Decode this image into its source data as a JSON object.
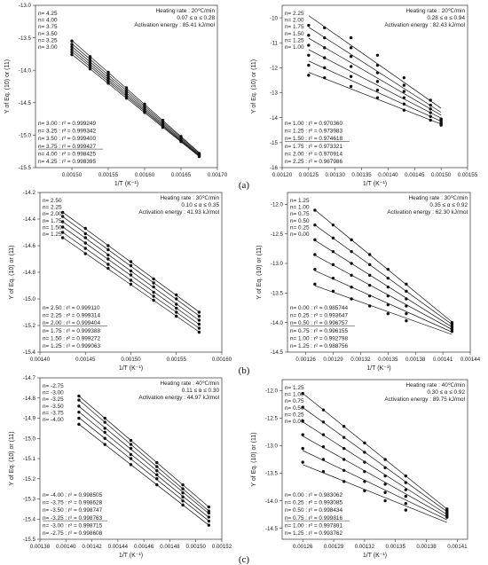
{
  "panel_labels": [
    "(a)",
    "(b)",
    "(c)"
  ],
  "chart_data": [
    {
      "type": "scatter",
      "xlabel": "1/T (K⁻¹)",
      "ylabel": "Y of Eq. (10) or (11)",
      "xlim": [
        0.00145,
        0.0017
      ],
      "ylim": [
        -15.5,
        -13.0
      ],
      "xticks": [
        "0.00150",
        "0.00155",
        "0.00160",
        "0.00165",
        "0.00170"
      ],
      "yticks": [
        "-13.0",
        "-13.5",
        "-14.0",
        "-14.5",
        "-15.0",
        "-15.5"
      ],
      "annotations": [
        "Heating rate : 20℃/min",
        "0.07 ≤ α ≤ 0.28",
        "Activation energy : 85.41 kJ/mol"
      ],
      "n_labels": [
        "n= 4.25",
        "n= 4.00",
        "n= 3.75",
        "n= 3.50",
        "n= 3.25",
        "n= 3.00"
      ],
      "r2_labels": [
        "n= 3.00 : r² = 0.999249",
        "n= 3.25 : r² = 0.999342",
        "n= 3.50 : r² = 0.999400",
        "n= 3.75 : r² = 0.999427",
        "n= 4.00 : r² = 0.998425",
        "n= 4.25 : r² = 0.998395"
      ],
      "r2_underline_index": 3,
      "x_points": [
        0.0015,
        0.001525,
        0.00155,
        0.001575,
        0.0016,
        0.001625,
        0.00165,
        0.001675
      ],
      "series": [
        {
          "name": "n= 4.25",
          "values": [
            -13.55,
            -13.79,
            -14.03,
            -14.27,
            -14.52,
            -14.77,
            -15.02,
            -15.28
          ]
        },
        {
          "name": "n= 4.00",
          "values": [
            -13.6,
            -13.83,
            -14.07,
            -14.31,
            -14.55,
            -14.79,
            -15.04,
            -15.29
          ]
        },
        {
          "name": "n= 3.75",
          "values": [
            -13.64,
            -13.87,
            -14.11,
            -14.34,
            -14.58,
            -14.82,
            -15.06,
            -15.3
          ]
        },
        {
          "name": "n= 3.50",
          "values": [
            -13.68,
            -13.91,
            -14.14,
            -14.37,
            -14.61,
            -14.84,
            -15.08,
            -15.31
          ]
        },
        {
          "name": "n= 3.25",
          "values": [
            -13.72,
            -13.94,
            -14.17,
            -14.4,
            -14.63,
            -14.86,
            -15.09,
            -15.32
          ]
        },
        {
          "name": "n= 3.00",
          "values": [
            -13.76,
            -13.98,
            -14.2,
            -14.43,
            -14.65,
            -14.88,
            -15.1,
            -15.33
          ]
        }
      ]
    },
    {
      "type": "scatter",
      "xlabel": "1/T (K⁻¹)",
      "ylabel": "Y of Eq. (10) or (11)",
      "xlim": [
        0.0012,
        0.00155
      ],
      "ylim": [
        -16,
        -9.5
      ],
      "xticks": [
        "0.00120",
        "0.00125",
        "0.00130",
        "0.00135",
        "0.00140",
        "0.00145",
        "0.00150",
        "0.00155"
      ],
      "yticks": [
        "-10",
        "-11",
        "-12",
        "-13",
        "-14",
        "-15",
        "-16"
      ],
      "annotations": [
        "Heating rate : 20℃/min",
        "0.28 ≤ α ≤ 0.94",
        "Activation energy : 82.43 kJ/mol"
      ],
      "n_labels": [
        "n= 2.25",
        "n= 2.00",
        "n= 1.75",
        "n= 1.50",
        "n= 1.25",
        "n= 1.00"
      ],
      "r2_labels": [
        "n= 1.00 : r² = 0.970360",
        "n= 1.25 : r² = 0.973983",
        "n= 1.50 : r² = 0.974618",
        "n= 1.75 : r² = 0.973321",
        "n= 2.00 : r² = 0.970914",
        "n= 2.25 : r² = 0.967986"
      ],
      "r2_underline_index": 2,
      "x_points": [
        0.00125,
        0.00128,
        0.00133,
        0.00138,
        0.00143,
        0.00148,
        0.0015
      ],
      "series": [
        {
          "name": "n= 2.25",
          "values": [
            -10.3,
            -10.4,
            -10.8,
            -11.5,
            -12.4,
            -13.3,
            -14.05
          ]
        },
        {
          "name": "n= 2.00",
          "values": [
            -10.7,
            -10.8,
            -11.2,
            -11.9,
            -12.7,
            -13.5,
            -14.1
          ]
        },
        {
          "name": "n= 1.75",
          "values": [
            -11.1,
            -11.2,
            -11.55,
            -12.2,
            -12.95,
            -13.65,
            -14.15
          ]
        },
        {
          "name": "n= 1.50",
          "values": [
            -11.5,
            -11.6,
            -11.95,
            -12.55,
            -13.2,
            -13.8,
            -14.2
          ]
        },
        {
          "name": "n= 1.25",
          "values": [
            -11.9,
            -12.0,
            -12.35,
            -12.9,
            -13.45,
            -13.95,
            -14.25
          ]
        },
        {
          "name": "n= 1.00",
          "values": [
            -12.3,
            -12.4,
            -12.75,
            -13.2,
            -13.7,
            -14.1,
            -14.3
          ]
        }
      ]
    },
    {
      "type": "scatter",
      "xlabel": "1/T (K⁻¹)",
      "ylabel": "Y of Eq. (10) or (11)",
      "xlim": [
        0.0014,
        0.0016
      ],
      "ylim": [
        -15.4,
        -14.2
      ],
      "xticks": [
        "0.00140",
        "0.00145",
        "0.00150",
        "0.00155",
        "0.00160"
      ],
      "yticks": [
        "-14.2",
        "-14.4",
        "-14.6",
        "-14.8",
        "-15.0",
        "-15.2",
        "-15.4"
      ],
      "annotations": [
        "Heating rate : 30℃/min",
        "0.10 ≤ α ≤ 0.35",
        "Activation energy : 41.93 kJ/mol"
      ],
      "n_labels": [
        "n= 2.50",
        "n= 2.25",
        "n= 2.00",
        "n= 1.75",
        "n= 1.50",
        "n= 1.25"
      ],
      "r2_labels": [
        "n= 2.50 : r² = 0.999110",
        "n= 2.25 : r² = 0.999314",
        "n= 2.00 : r² = 0.999404",
        "n= 1.75 : r² = 0.999388",
        "n= 1.50 : r² = 0.999272",
        "n= 1.25 : r² = 0.999063"
      ],
      "r2_underline_index": 2,
      "x_points": [
        0.001425,
        0.00145,
        0.001475,
        0.0015,
        0.001525,
        0.00155,
        0.001575
      ],
      "series": [
        {
          "name": "n= 2.50",
          "values": [
            -14.35,
            -14.47,
            -14.6,
            -14.72,
            -14.85,
            -14.97,
            -15.1
          ]
        },
        {
          "name": "n= 2.25",
          "values": [
            -14.38,
            -14.51,
            -14.63,
            -14.75,
            -14.88,
            -15.0,
            -15.13
          ]
        },
        {
          "name": "n= 2.00",
          "values": [
            -14.42,
            -14.54,
            -14.67,
            -14.79,
            -14.91,
            -15.04,
            -15.16
          ]
        },
        {
          "name": "n= 1.75",
          "values": [
            -14.46,
            -14.58,
            -14.7,
            -14.82,
            -14.95,
            -15.07,
            -15.19
          ]
        },
        {
          "name": "n= 1.50",
          "values": [
            -14.5,
            -14.62,
            -14.74,
            -14.86,
            -14.98,
            -15.1,
            -15.22
          ]
        },
        {
          "name": "n= 1.25",
          "values": [
            -14.54,
            -14.66,
            -14.77,
            -14.89,
            -15.01,
            -15.13,
            -15.25
          ]
        }
      ]
    },
    {
      "type": "scatter",
      "xlabel": "1/T (K⁻¹)",
      "ylabel": "Y of Eq. (10) or (11)",
      "xlim": [
        0.00124,
        0.00144
      ],
      "ylim": [
        -14.5,
        -11.8
      ],
      "xticks": [
        "0.00126",
        "0.00129",
        "0.00132",
        "0.00135",
        "0.00138",
        "0.00141",
        "0.00144"
      ],
      "yticks": [
        "-12.0",
        "-12.5",
        "-13.0",
        "-13.5",
        "-14.0",
        "-14.5"
      ],
      "annotations": [
        "Heating rate : 30℃/min",
        "0.35 ≤ α ≤ 0.92",
        "Activation energy : 62.30 kJ/mol"
      ],
      "n_labels": [
        "n= 1.25",
        "n= 1.00",
        "n= 0.75",
        "n= 0.50",
        "n= 0.25",
        "n= 0.00"
      ],
      "r2_labels": [
        "n= 0.00 : r² = 0.985744",
        "n= 0.25 : r² = 0.993647",
        "n= 0.50 : r² = 0.996757",
        "n= 0.75 : r² = 0.996155",
        "n= 1.00 : r² = 0.992798",
        "n= 1.25 : r² = 0.988756"
      ],
      "r2_underline_index": 2,
      "x_points": [
        0.00127,
        0.00129,
        0.00131,
        0.00133,
        0.00135,
        0.00137,
        0.00142
      ],
      "series": [
        {
          "name": "n= 1.25",
          "values": [
            -12.1,
            -12.35,
            -12.6,
            -12.85,
            -13.1,
            -13.35,
            -14.0
          ]
        },
        {
          "name": "n= 1.00",
          "values": [
            -12.35,
            -12.57,
            -12.8,
            -13.02,
            -13.25,
            -13.47,
            -14.03
          ]
        },
        {
          "name": "n= 0.75",
          "values": [
            -12.6,
            -12.8,
            -13.0,
            -13.2,
            -13.4,
            -13.6,
            -14.06
          ]
        },
        {
          "name": "n= 0.50",
          "values": [
            -12.85,
            -13.02,
            -13.2,
            -13.37,
            -13.55,
            -13.72,
            -14.09
          ]
        },
        {
          "name": "n= 0.25",
          "values": [
            -13.1,
            -13.25,
            -13.4,
            -13.55,
            -13.7,
            -13.85,
            -14.12
          ]
        },
        {
          "name": "n= 0.00",
          "values": [
            -13.35,
            -13.47,
            -13.6,
            -13.72,
            -13.85,
            -13.97,
            -14.15
          ]
        }
      ]
    },
    {
      "type": "scatter",
      "xlabel": "1/T (K⁻¹)",
      "ylabel": "Y of Eq. (10) or (11)",
      "xlim": [
        0.00138,
        0.00152
      ],
      "ylim": [
        -15.5,
        -14.7
      ],
      "xticks": [
        "0.00138",
        "0.00140",
        "0.00142",
        "0.00144",
        "0.00146",
        "0.00148",
        "0.00150",
        "0.00152"
      ],
      "yticks": [
        "-14.7",
        "-14.8",
        "-14.9",
        "-15.0",
        "-15.1",
        "-15.2",
        "-15.3",
        "-15.4",
        "-15.5"
      ],
      "annotations": [
        "Heating rate : 40℃/min",
        "0.11 ≤ α ≤ 0.30",
        "Activation energy : 44.97 kJ/mol"
      ],
      "n_labels": [
        "n= -2.75",
        "n= -3.00",
        "n= -3.25",
        "n= -3.50",
        "n= -3.75",
        "n= -4.00"
      ],
      "r2_labels": [
        "n= -4.00 : r² = 0.998505",
        "n= -3.75 : r² = 0.998628",
        "n= -3.50 : r² = 0.998747",
        "n= -3.25 : r² = 0.998763",
        "n= -3.00 : r² = 0.998715",
        "n= -2.75 : r² = 0.998608"
      ],
      "r2_underline_index": 3,
      "x_points": [
        0.00141,
        0.00143,
        0.00145,
        0.00147,
        0.00149,
        0.00151
      ],
      "series": [
        {
          "name": "n= -2.75",
          "values": [
            -14.79,
            -14.9,
            -15.01,
            -15.12,
            -15.23,
            -15.34
          ]
        },
        {
          "name": "n= -3.00",
          "values": [
            -14.81,
            -14.92,
            -15.03,
            -15.14,
            -15.25,
            -15.36
          ]
        },
        {
          "name": "n= -3.25",
          "values": [
            -14.84,
            -14.95,
            -15.05,
            -15.16,
            -15.27,
            -15.37
          ]
        },
        {
          "name": "n= -3.50",
          "values": [
            -14.87,
            -14.97,
            -15.08,
            -15.18,
            -15.29,
            -15.39
          ]
        },
        {
          "name": "n= -3.75",
          "values": [
            -14.9,
            -15.0,
            -15.1,
            -15.2,
            -15.31,
            -15.41
          ]
        },
        {
          "name": "n= -4.00",
          "values": [
            -14.93,
            -15.03,
            -15.13,
            -15.23,
            -15.33,
            -15.43
          ]
        }
      ]
    },
    {
      "type": "scatter",
      "xlabel": "1/T (K⁻¹)",
      "ylabel": "Y of Eq. (10) or (11)",
      "xlim": [
        0.00124,
        0.00142
      ],
      "ylim": [
        -14.7,
        -11.8
      ],
      "xticks": [
        "0.00126",
        "0.00129",
        "0.00132",
        "0.00135",
        "0.00138",
        "0.00141"
      ],
      "yticks": [
        "-12.0",
        "-12.5",
        "-13.0",
        "-13.5",
        "-14.0",
        "-14.5"
      ],
      "annotations": [
        "Heating rate : 40℃/min",
        "0.30 ≤ α ≤ 0.92",
        "Activation energy : 89.75 kJ/mol"
      ],
      "n_labels": [
        "n= 1.25",
        "n= 1.00",
        "n= 0.75",
        "n= 0.50",
        "n= 0.25",
        "n= 0.00"
      ],
      "r2_labels": [
        "n= 0.00 : r² = 0.983062",
        "n= 0.25 : r² = 0.993085",
        "n= 0.50 : r² = 0.998434",
        "n= 0.75 : r² = 0.999816",
        "n= 1.00 : r² = 0.997891",
        "n= 1.25 : r² = 0.993762"
      ],
      "r2_underline_index": 3,
      "x_points": [
        0.00126,
        0.00128,
        0.0013,
        0.00132,
        0.00134,
        0.00136,
        0.0014
      ],
      "series": [
        {
          "name": "n= 1.25",
          "values": [
            -12.05,
            -12.35,
            -12.65,
            -12.95,
            -13.25,
            -13.55,
            -14.15
          ]
        },
        {
          "name": "n= 1.00",
          "values": [
            -12.3,
            -12.57,
            -12.85,
            -13.12,
            -13.4,
            -13.67,
            -14.18
          ]
        },
        {
          "name": "n= 0.75",
          "values": [
            -12.55,
            -12.8,
            -13.05,
            -13.3,
            -13.55,
            -13.8,
            -14.21
          ]
        },
        {
          "name": "n= 0.50",
          "values": [
            -12.8,
            -13.02,
            -13.25,
            -13.47,
            -13.7,
            -13.92,
            -14.24
          ]
        },
        {
          "name": "n= 0.25",
          "values": [
            -13.05,
            -13.25,
            -13.45,
            -13.65,
            -13.85,
            -14.05,
            -14.27
          ]
        },
        {
          "name": "n= 0.00",
          "values": [
            -13.3,
            -13.47,
            -13.65,
            -13.82,
            -14.0,
            -14.17,
            -14.3
          ]
        }
      ]
    }
  ]
}
